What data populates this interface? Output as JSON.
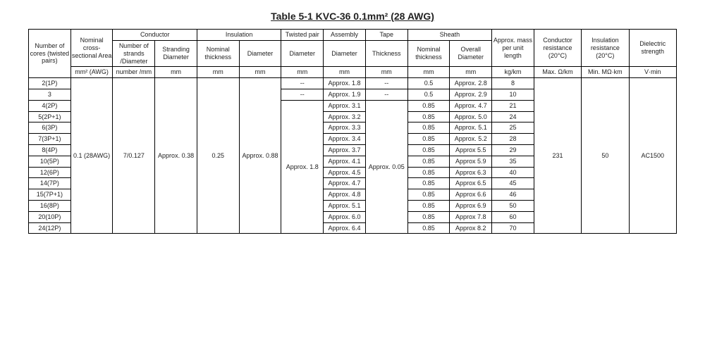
{
  "title": "Table 5-1    KVC-36    0.1mm² (28 AWG)",
  "colors": {
    "border": "#000000",
    "text": "#222222",
    "bg": "#ffffff"
  },
  "fontSizes": {
    "title": 14,
    "cell": 9
  },
  "headerGroups": {
    "conductor": "Conductor",
    "insulation": "Insulation",
    "twistedPair": "Twisted pair",
    "assembly": "Assembly",
    "tape": "Tape",
    "sheath": "Sheath"
  },
  "headers": {
    "cores_l1": "Number of cores (twisted pairs)",
    "nominal_l1": "Nominal cross-sectional Area",
    "nominal_l2": "mm² (AWG)",
    "cond_num_l1": "Number of strands /Diameter",
    "cond_num_l2": "number /mm",
    "cond_strand_l1": "Stranding Diameter",
    "cond_strand_l2": "mm",
    "ins_thick_l1": "Nominal thickness",
    "ins_thick_l2": "mm",
    "ins_dia_l1": "Diameter",
    "ins_dia_l2": "mm",
    "tp_dia_l1": "Diameter",
    "tp_dia_l2": "mm",
    "asm_dia_l1": "Diameter",
    "asm_dia_l2": "mm",
    "tape_thick_l1": "Thickness",
    "tape_thick_l2": "mm",
    "sheath_thick_l1": "Nominal thickness",
    "sheath_thick_l2": "mm",
    "sheath_dia_l1": "Overall Diameter",
    "sheath_dia_l2": "mm",
    "mass_l1": "Approx. mass per unit length",
    "mass_l2": "kg/km",
    "condres_l1": "Conductor resistance (20°C)",
    "condres_l2": "Max. Ω/km",
    "insres_l1": "Insulation resistance (20°C)",
    "insres_l2": "Min. MΩ·km",
    "diel_l1": "Dielectric strength",
    "diel_l2": "V·min"
  },
  "shared": {
    "nominal": "0.1 (28AWG)",
    "cond_num": "7/0.127",
    "cond_strand": "Approx. 0.38",
    "ins_thick": "0.25",
    "ins_dia": "Approx. 0.88",
    "tp_dia": "Approx. 1.8",
    "tape_thick": "Approx. 0.05",
    "cond_res": "231",
    "ins_res": "50",
    "diel": "AC1500"
  },
  "rows": [
    {
      "cores": "2(1P)",
      "tp": "--",
      "asm": "Approx. 1.8",
      "tape": "--",
      "sheath_t": "0.5",
      "sheath_d": "Approx. 2.8",
      "mass": "8"
    },
    {
      "cores": "3",
      "tp": "--",
      "asm": "Approx. 1.9",
      "tape": "--",
      "sheath_t": "0.5",
      "sheath_d": "Approx. 2.9",
      "mass": "10"
    },
    {
      "cores": "4(2P)",
      "asm": "Approx. 3.1",
      "sheath_t": "0.85",
      "sheath_d": "Approx. 4.7",
      "mass": "21"
    },
    {
      "cores": "5(2P+1)",
      "asm": "Approx. 3.2",
      "sheath_t": "0.85",
      "sheath_d": "Approx. 5.0",
      "mass": "24"
    },
    {
      "cores": "6(3P)",
      "asm": "Approx. 3.3",
      "sheath_t": "0.85",
      "sheath_d": "Approx. 5.1",
      "mass": "25"
    },
    {
      "cores": "7(3P+1)",
      "asm": "Approx. 3.4",
      "sheath_t": "0.85",
      "sheath_d": "Approx. 5.2",
      "mass": "28"
    },
    {
      "cores": "8(4P)",
      "asm": "Approx. 3.7",
      "sheath_t": "0.85",
      "sheath_d": "Approx  5.5",
      "mass": "29"
    },
    {
      "cores": "10(5P)",
      "asm": "Approx. 4.1",
      "sheath_t": "0.85",
      "sheath_d": "Approx  5.9",
      "mass": "35"
    },
    {
      "cores": "12(6P)",
      "asm": "Approx. 4.5",
      "sheath_t": "0.85",
      "sheath_d": "Approx  6.3",
      "mass": "40"
    },
    {
      "cores": "14(7P)",
      "asm": "Approx. 4.7",
      "sheath_t": "0.85",
      "sheath_d": "Approx  6.5",
      "mass": "45"
    },
    {
      "cores": "15(7P+1)",
      "asm": "Approx. 4.8",
      "sheath_t": "0.85",
      "sheath_d": "Approx  6.6",
      "mass": "46"
    },
    {
      "cores": "16(8P)",
      "asm": "Approx. 5.1",
      "sheath_t": "0.85",
      "sheath_d": "Approx  6.9",
      "mass": "50"
    },
    {
      "cores": "20(10P)",
      "asm": "Approx. 6.0",
      "sheath_t": "0.85",
      "sheath_d": "Approx  7.8",
      "mass": "60"
    },
    {
      "cores": "24(12P)",
      "asm": "Approx. 6.4",
      "sheath_t": "0.85",
      "sheath_d": "Approx  8.2",
      "mass": "70"
    }
  ]
}
